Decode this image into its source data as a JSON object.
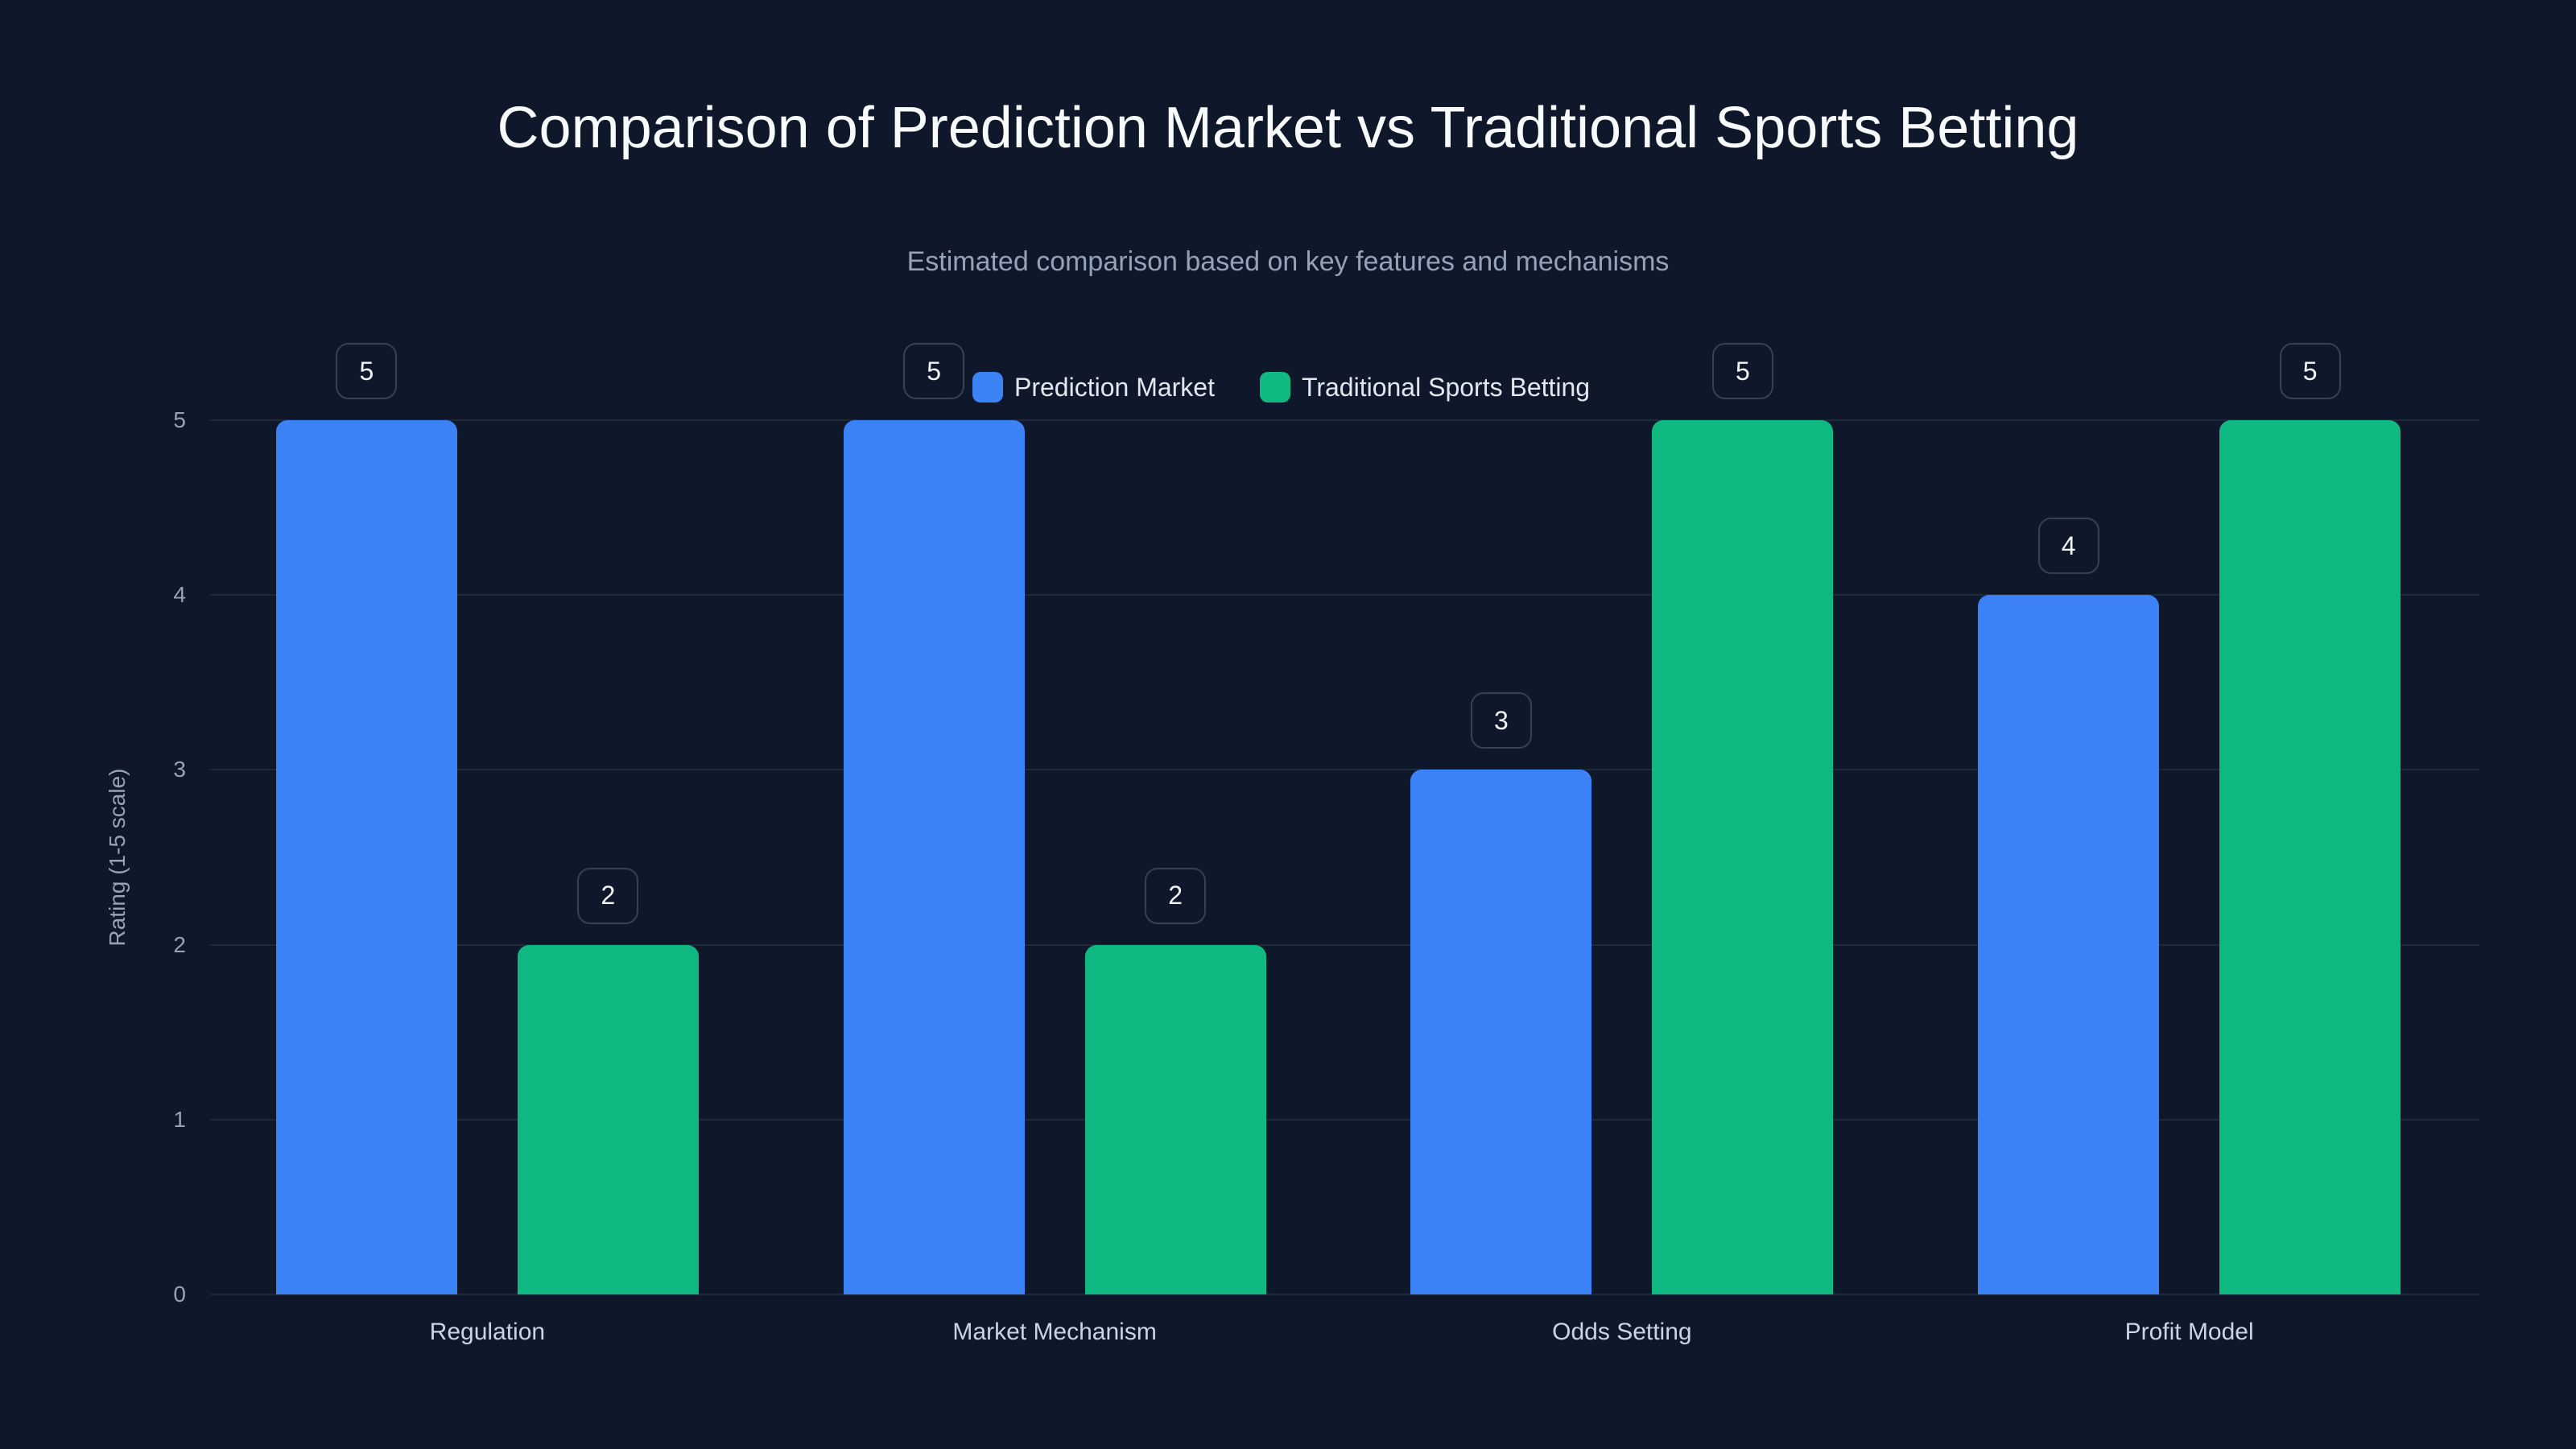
{
  "chart_data": {
    "type": "bar",
    "title": "Comparison of Prediction Market vs Traditional Sports Betting",
    "subtitle": "Estimated comparison based on key features and mechanisms",
    "xlabel": "",
    "ylabel": "Rating (1-5 scale)",
    "ylim": [
      0,
      5
    ],
    "yticks": [
      "0",
      "1",
      "2",
      "3",
      "4",
      "5"
    ],
    "grid": true,
    "legend_position": "top-center",
    "categories": [
      "Regulation",
      "Market Mechanism",
      "Odds Setting",
      "Profit Model"
    ],
    "series": [
      {
        "name": "Prediction Market",
        "color": "#3b82f6",
        "values": [
          5,
          5,
          3,
          4
        ]
      },
      {
        "name": "Traditional Sports Betting",
        "color": "#10b981",
        "values": [
          2,
          2,
          5,
          5
        ]
      }
    ]
  }
}
